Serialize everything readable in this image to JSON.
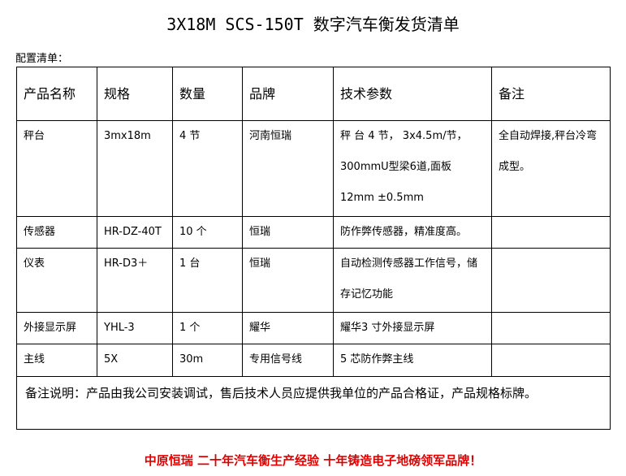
{
  "title": "3X18M SCS-150T 数字汽车衡发货清单",
  "subtitle": "配置清单：",
  "headers": [
    "产品名称",
    "规格",
    "数量",
    "品牌",
    "技术参数",
    "备注"
  ],
  "rows": [
    [
      "秤台",
      "3mx18m",
      "4 节",
      "河南恒瑞",
      "秤 台 4 节， 3x4.5m/节，300mmU型梁6道,面板12mm ±0.5mm",
      "全自动焊接,秤台冷弯成型。"
    ],
    [
      "传感器",
      "HR-DZ-40T",
      "10 个",
      "恒瑞",
      "防作弊传感器，精准度高。",
      ""
    ],
    [
      "仪表",
      "HR-D3＋",
      "1 台",
      "恒瑞",
      "自动检测传感器工作信号，储存记忆功能",
      ""
    ],
    [
      "外接显示屏",
      "YHL-3",
      "1 个",
      "耀华",
      "耀华3 寸外接显示屏",
      ""
    ],
    [
      "主线",
      "5X",
      "30m",
      "专用信号线",
      "5 芯防作弊主线",
      ""
    ]
  ],
  "notes": "备注说明：产品由我公司安装调试，售后技术人员应提供我单位的产品合格证，产品规格标牌。",
  "footer": "中原恒瑞 二十年汽车衡生产经验 十年铸造电子地磅领军品牌！",
  "colors": {
    "footer": "#e00000"
  }
}
